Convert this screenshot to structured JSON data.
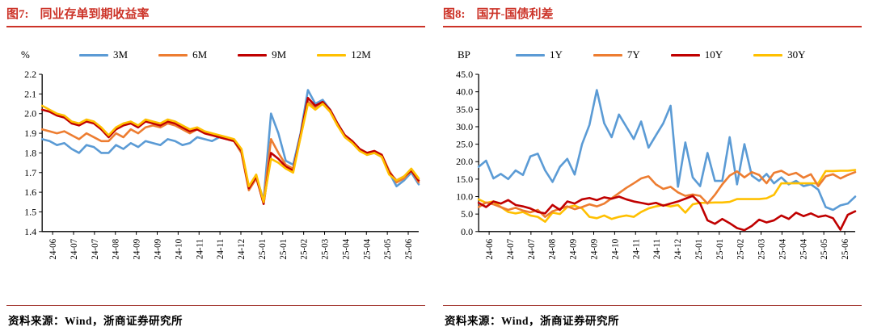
{
  "colors": {
    "accent_red": "#CC3328",
    "source_rule": "#A03028",
    "axis": "#000000",
    "series_blue": "#5B9BD5",
    "series_orange": "#ED7D31",
    "series_red": "#C00000",
    "series_yellow": "#FFC000"
  },
  "panels": [
    {
      "fig_label": "图7:",
      "title": "同业存单到期收益率",
      "unit": "%",
      "source": "资料来源：Wind，浙商证券研究所"
    },
    {
      "fig_label": "图8:",
      "title": "国开-国债利差",
      "unit": "BP",
      "source": "资料来源：Wind，浙商证券研究所"
    }
  ],
  "chart_data": [
    {
      "type": "line",
      "title": "同业存单到期收益率",
      "ylabel": "%",
      "ylim": [
        1.4,
        2.2
      ],
      "ytick_values": [
        2.2,
        2.1,
        2.0,
        1.9,
        1.8,
        1.7,
        1.6,
        1.5,
        1.4
      ],
      "ytick_labels": [
        "2.2",
        "2.1",
        "2.0",
        "1.9",
        "1.8",
        "1.7",
        "1.6",
        "1.5",
        "1.4"
      ],
      "x_tick_labels": [
        "24-06",
        "24-07",
        "24-07",
        "24-08",
        "24-09",
        "24-09",
        "24-10",
        "24-11",
        "24-11",
        "24-12",
        "25-01",
        "25-01",
        "25-02",
        "25-03",
        "25-04",
        "25-04",
        "25-05",
        "25-06"
      ],
      "grid": false,
      "legend_position": "top",
      "draw_order": [
        0,
        1,
        2,
        3
      ],
      "series": [
        {
          "name": "3M",
          "color": "#5B9BD5",
          "values": [
            1.87,
            1.86,
            1.84,
            1.85,
            1.82,
            1.8,
            1.84,
            1.83,
            1.8,
            1.8,
            1.84,
            1.82,
            1.85,
            1.83,
            1.86,
            1.85,
            1.84,
            1.87,
            1.86,
            1.84,
            1.85,
            1.88,
            1.87,
            1.86,
            1.88,
            1.87,
            1.86,
            1.8,
            1.62,
            1.68,
            1.56,
            2.0,
            1.9,
            1.76,
            1.74,
            1.9,
            2.12,
            2.05,
            2.07,
            2.02,
            1.95,
            1.89,
            1.86,
            1.82,
            1.79,
            1.8,
            1.78,
            1.7,
            1.63,
            1.66,
            1.7,
            1.64
          ]
        },
        {
          "name": "6M",
          "color": "#ED7D31",
          "values": [
            1.92,
            1.91,
            1.9,
            1.91,
            1.89,
            1.87,
            1.9,
            1.88,
            1.86,
            1.86,
            1.9,
            1.88,
            1.92,
            1.9,
            1.93,
            1.94,
            1.93,
            1.95,
            1.94,
            1.92,
            1.9,
            1.92,
            1.9,
            1.89,
            1.88,
            1.87,
            1.86,
            1.8,
            1.61,
            1.67,
            1.55,
            1.87,
            1.8,
            1.74,
            1.72,
            1.88,
            2.06,
            2.03,
            2.05,
            2.01,
            1.94,
            1.89,
            1.86,
            1.82,
            1.8,
            1.81,
            1.79,
            1.71,
            1.65,
            1.67,
            1.71,
            1.65
          ]
        },
        {
          "name": "9M",
          "color": "#C00000",
          "values": [
            2.02,
            2.01,
            1.99,
            1.98,
            1.95,
            1.94,
            1.96,
            1.95,
            1.92,
            1.88,
            1.92,
            1.94,
            1.95,
            1.93,
            1.96,
            1.95,
            1.94,
            1.96,
            1.95,
            1.93,
            1.91,
            1.92,
            1.9,
            1.89,
            1.88,
            1.87,
            1.86,
            1.81,
            1.62,
            1.68,
            1.54,
            1.8,
            1.77,
            1.73,
            1.71,
            1.89,
            2.08,
            2.04,
            2.06,
            2.02,
            1.95,
            1.89,
            1.86,
            1.82,
            1.8,
            1.81,
            1.79,
            1.7,
            1.66,
            1.68,
            1.71,
            1.66
          ]
        },
        {
          "name": "12M",
          "color": "#FFC000",
          "values": [
            2.04,
            2.02,
            2.0,
            1.99,
            1.96,
            1.95,
            1.97,
            1.96,
            1.93,
            1.89,
            1.93,
            1.95,
            1.96,
            1.94,
            1.97,
            1.96,
            1.95,
            1.97,
            1.96,
            1.94,
            1.92,
            1.93,
            1.91,
            1.9,
            1.89,
            1.88,
            1.87,
            1.82,
            1.63,
            1.69,
            1.55,
            1.77,
            1.75,
            1.72,
            1.7,
            1.88,
            2.05,
            2.02,
            2.05,
            2.01,
            1.94,
            1.88,
            1.85,
            1.81,
            1.79,
            1.8,
            1.78,
            1.69,
            1.66,
            1.68,
            1.72,
            1.67
          ]
        }
      ]
    },
    {
      "type": "line",
      "title": "国开-国债利差",
      "ylabel": "BP",
      "ylim": [
        0,
        45
      ],
      "ytick_values": [
        45,
        40,
        35,
        30,
        25,
        20,
        15,
        10,
        5,
        0
      ],
      "ytick_labels": [
        "45.0",
        "40.0",
        "35.0",
        "30.0",
        "25.0",
        "20.0",
        "15.0",
        "10.0",
        "5.0",
        "0.0"
      ],
      "x_tick_labels": [
        "24-06",
        "24-07",
        "24-07",
        "24-08",
        "24-09",
        "24-09",
        "24-10",
        "24-11",
        "24-11",
        "24-12",
        "25-01",
        "25-01",
        "25-02",
        "25-03",
        "25-04",
        "25-04",
        "25-05",
        "25-06"
      ],
      "grid": false,
      "legend_position": "top",
      "draw_order": [
        0,
        3,
        1,
        2
      ],
      "series": [
        {
          "name": "1Y",
          "color": "#5B9BD5",
          "values": [
            18.5,
            20.3,
            15.2,
            16.5,
            15.0,
            17.5,
            16.2,
            21.5,
            22.3,
            17.5,
            14.2,
            18.5,
            20.8,
            16.3,
            25.0,
            30.5,
            40.5,
            31.0,
            27.0,
            33.5,
            30.0,
            26.5,
            31.5,
            24.0,
            27.5,
            31.0,
            36.0,
            12.8,
            25.5,
            15.5,
            13.0,
            22.5,
            14.5,
            14.5,
            27.0,
            13.5,
            25.0,
            16.0,
            14.5,
            16.5,
            13.8,
            15.5,
            13.5,
            14.5,
            13.0,
            13.5,
            12.0,
            7.0,
            6.2,
            7.5,
            8.0,
            10.0
          ]
        },
        {
          "name": "7Y",
          "color": "#ED7D31",
          "values": [
            7.0,
            8.3,
            7.8,
            7.0,
            6.2,
            6.8,
            6.0,
            5.5,
            6.2,
            4.2,
            5.8,
            6.5,
            7.2,
            6.4,
            7.0,
            7.8,
            7.2,
            8.0,
            9.5,
            11.0,
            12.5,
            13.8,
            15.2,
            15.8,
            13.5,
            12.2,
            12.8,
            11.2,
            10.2,
            10.6,
            10.2,
            8.0,
            10.5,
            13.5,
            16.0,
            17.2,
            15.5,
            17.0,
            16.2,
            13.8,
            16.8,
            17.4,
            16.2,
            16.8,
            15.4,
            16.4,
            13.0,
            15.8,
            16.4,
            15.2,
            16.2,
            17.0
          ]
        },
        {
          "name": "10Y",
          "color": "#C00000",
          "values": [
            8.2,
            7.0,
            8.6,
            8.0,
            9.0,
            7.6,
            7.2,
            6.6,
            5.6,
            5.2,
            7.6,
            6.2,
            8.6,
            8.0,
            9.2,
            9.6,
            9.0,
            9.8,
            9.4,
            10.0,
            9.2,
            8.6,
            8.2,
            7.8,
            8.2,
            7.4,
            8.0,
            8.6,
            9.4,
            10.2,
            8.0,
            3.2,
            2.2,
            3.6,
            2.4,
            1.0,
            0.4,
            1.6,
            3.4,
            2.6,
            3.2,
            4.6,
            3.6,
            5.4,
            4.4,
            5.2,
            4.2,
            4.6,
            3.8,
            0.5,
            4.8,
            5.8
          ]
        },
        {
          "name": "30Y",
          "color": "#FFC000",
          "values": [
            9.2,
            8.2,
            8.6,
            7.0,
            5.6,
            5.2,
            5.6,
            4.6,
            4.2,
            2.8,
            5.4,
            5.0,
            7.0,
            7.4,
            6.6,
            4.2,
            3.8,
            4.6,
            3.6,
            4.2,
            4.6,
            4.2,
            5.6,
            6.6,
            7.2,
            7.6,
            7.2,
            7.6,
            5.4,
            7.8,
            8.2,
            8.2,
            8.3,
            8.3,
            8.5,
            9.3,
            9.3,
            9.3,
            9.3,
            9.5,
            10.5,
            13.8,
            13.8,
            13.8,
            13.8,
            13.8,
            13.8,
            17.3,
            17.3,
            17.4,
            17.4,
            17.6
          ]
        }
      ]
    }
  ]
}
